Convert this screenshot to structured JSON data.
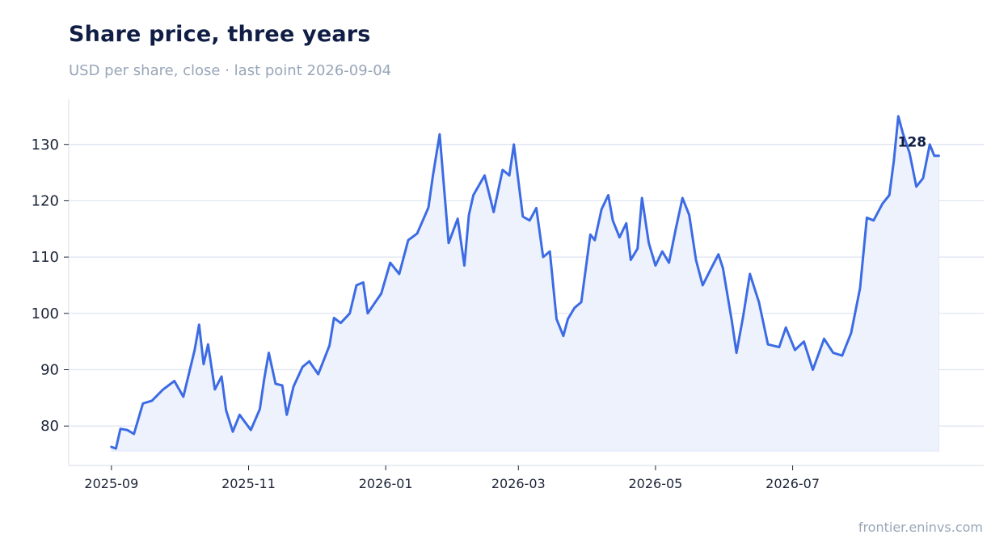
{
  "header": {
    "title": "Share price, three years",
    "subtitle": "USD per share, close · last point 2026-09-04",
    "source": "frontier.eninvs.com"
  },
  "colors": {
    "line": "#3c6be4",
    "area": "#edf2fd",
    "grid": "#dde3f0",
    "axis": "#e3e7ee",
    "title": "#101d45",
    "muted": "#98a6b8"
  },
  "chart_data": {
    "type": "area",
    "title": "Share price, three years",
    "subtitle": "USD per share, close · last point 2026-09-04",
    "xlabel": "",
    "ylabel": "",
    "ylim": [
      73,
      138
    ],
    "xlim": [
      "2025-08-13",
      "2026-09-24"
    ],
    "yticks": [
      80,
      90,
      100,
      110,
      120,
      130
    ],
    "xticks": [
      "2025-09",
      "2025-11",
      "2026-01",
      "2026-03",
      "2026-05",
      "2026-07"
    ],
    "grid": true,
    "end_label": "128",
    "series": [
      {
        "x": [
          "2025-09-01",
          "2025-09-03",
          "2025-09-05",
          "2025-09-08",
          "2025-09-11",
          "2025-09-15",
          "2025-09-19",
          "2025-09-24",
          "2025-09-29",
          "2025-10-03",
          "2025-10-08",
          "2025-10-10",
          "2025-10-12",
          "2025-10-14",
          "2025-10-17",
          "2025-10-20",
          "2025-10-22",
          "2025-10-25",
          "2025-10-28",
          "2025-11-02",
          "2025-11-06",
          "2025-11-08",
          "2025-11-10",
          "2025-11-13",
          "2025-11-16",
          "2025-11-18",
          "2025-11-21",
          "2025-11-25",
          "2025-11-28",
          "2025-12-02",
          "2025-12-07",
          "2025-12-09",
          "2025-12-12",
          "2025-12-16",
          "2025-12-19",
          "2025-12-22",
          "2025-12-24",
          "2025-12-27",
          "2025-12-30",
          "2026-01-03",
          "2026-01-07",
          "2026-01-11",
          "2026-01-15",
          "2026-01-20",
          "2026-01-22",
          "2026-01-25",
          "2026-01-29",
          "2026-02-02",
          "2026-02-05",
          "2026-02-07",
          "2026-02-09",
          "2026-02-14",
          "2026-02-18",
          "2026-02-22",
          "2026-02-25",
          "2026-02-27",
          "2026-03-03",
          "2026-03-06",
          "2026-03-09",
          "2026-03-12",
          "2026-03-15",
          "2026-03-18",
          "2026-03-21",
          "2026-03-23",
          "2026-03-26",
          "2026-03-29",
          "2026-04-02",
          "2026-04-04",
          "2026-04-07",
          "2026-04-10",
          "2026-04-12",
          "2026-04-15",
          "2026-04-18",
          "2026-04-20",
          "2026-04-23",
          "2026-04-25",
          "2026-04-28",
          "2026-05-01",
          "2026-05-04",
          "2026-05-07",
          "2026-05-10",
          "2026-05-13",
          "2026-05-16",
          "2026-05-19",
          "2026-05-22",
          "2026-05-26",
          "2026-05-29",
          "2026-05-31",
          "2026-06-04",
          "2026-06-06",
          "2026-06-09",
          "2026-06-12",
          "2026-06-16",
          "2026-06-20",
          "2026-06-25",
          "2026-06-28",
          "2026-07-02",
          "2026-07-06",
          "2026-07-10",
          "2026-07-15",
          "2026-07-19",
          "2026-07-23",
          "2026-07-27",
          "2026-07-31",
          "2026-08-03",
          "2026-08-06",
          "2026-08-10",
          "2026-08-13",
          "2026-08-15",
          "2026-08-17",
          "2026-08-19",
          "2026-08-22",
          "2026-08-25",
          "2026-08-28",
          "2026-08-31",
          "2026-09-02",
          "2026-09-04"
        ],
        "y": [
          76.3,
          76.0,
          79.5,
          79.3,
          78.6,
          84.0,
          84.5,
          86.5,
          88.0,
          85.2,
          93.5,
          98.0,
          91.0,
          94.5,
          86.5,
          88.8,
          82.8,
          79.0,
          82.0,
          79.3,
          83.0,
          88.5,
          93.0,
          87.5,
          87.2,
          82.0,
          87.0,
          90.5,
          91.5,
          89.2,
          94.3,
          99.2,
          98.3,
          100.0,
          105.0,
          105.5,
          100.0,
          101.8,
          103.5,
          109.0,
          107.0,
          113.0,
          114.2,
          118.8,
          124.5,
          131.8,
          112.5,
          116.8,
          108.5,
          117.5,
          121.0,
          124.5,
          118.0,
          125.5,
          124.5,
          130.0,
          117.2,
          116.5,
          118.7,
          110.0,
          111.0,
          99.0,
          96.0,
          99.0,
          101.0,
          102.0,
          114.0,
          113.0,
          118.5,
          121.0,
          116.5,
          113.5,
          116.0,
          109.5,
          111.5,
          120.5,
          112.5,
          108.5,
          111.0,
          109.0,
          115.0,
          120.5,
          117.5,
          109.5,
          105.0,
          108.2,
          110.5,
          108.0,
          98.5,
          93.0,
          99.5,
          107.0,
          102.0,
          94.5,
          94.0,
          97.5,
          93.5,
          95.0,
          90.0,
          95.5,
          93.0,
          92.5,
          96.5,
          104.5,
          117.0,
          116.5,
          119.5,
          121.0,
          127.0,
          135.0,
          132.0,
          128.5,
          122.5,
          124.0,
          130.0,
          128.0,
          128.0
        ]
      }
    ]
  }
}
